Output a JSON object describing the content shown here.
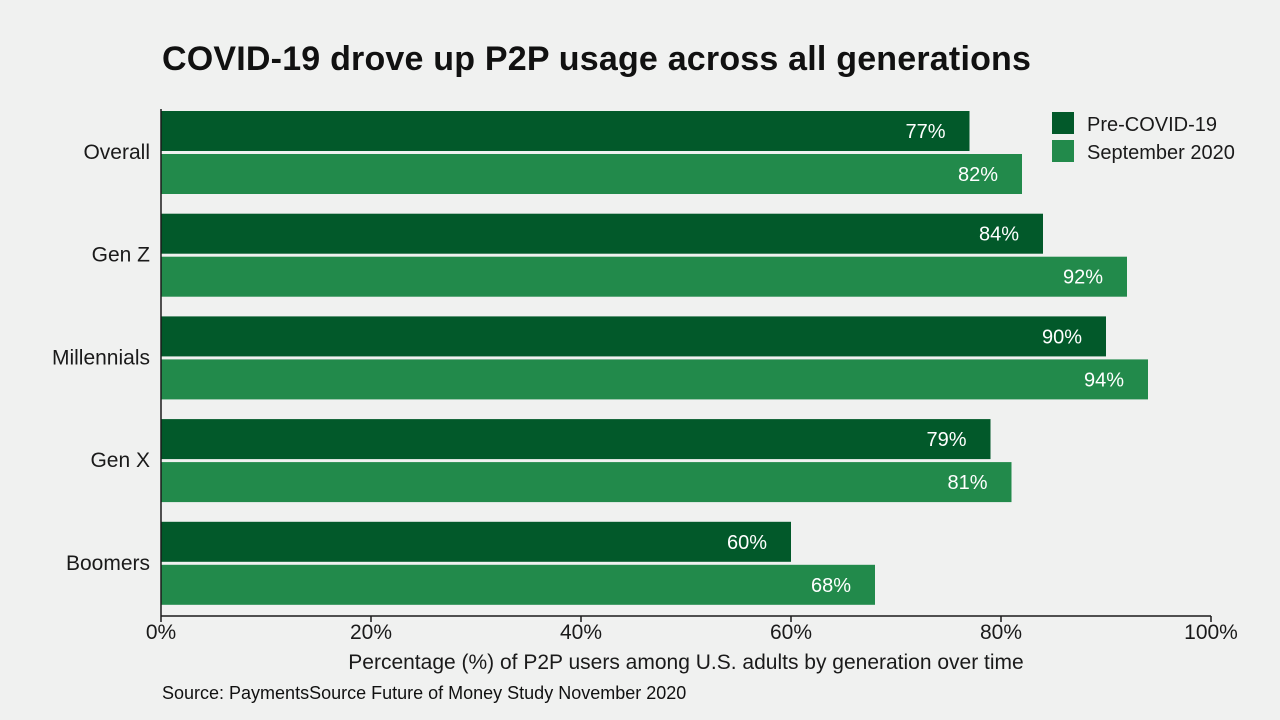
{
  "title": "COVID-19 drove up P2P usage across all generations",
  "source": "Source: PaymentsSource Future of Money Study November 2020",
  "colors": {
    "pre": "#02592a",
    "sep": "#228a4b",
    "background": "#f0f1f0",
    "axis": "#1a1a1a"
  },
  "chart_data": {
    "type": "bar",
    "orientation": "horizontal",
    "title": "COVID-19 drove up P2P usage across all generations",
    "xlabel": "Percentage (%) of P2P users among U.S. adults by generation over time",
    "ylabel": "",
    "xlim": [
      0,
      100
    ],
    "categories": [
      "Overall",
      "Gen Z",
      "Millennials",
      "Gen X",
      "Boomers"
    ],
    "series": [
      {
        "name": "Pre-COVID-19",
        "values": [
          77,
          84,
          90,
          79,
          60
        ],
        "color": "#02592a"
      },
      {
        "name": "September 2020",
        "values": [
          82,
          92,
          94,
          81,
          68
        ],
        "color": "#228a4b"
      }
    ],
    "ticks": [
      {
        "value": 0,
        "label": "0%"
      },
      {
        "value": 20,
        "label": "20%"
      },
      {
        "value": 40,
        "label": "40%"
      },
      {
        "value": 60,
        "label": "60%"
      },
      {
        "value": 80,
        "label": "80%"
      },
      {
        "value": 100,
        "label": "100%"
      }
    ],
    "data_label_suffix": "%",
    "legend_position": "top-right",
    "grid": false
  }
}
